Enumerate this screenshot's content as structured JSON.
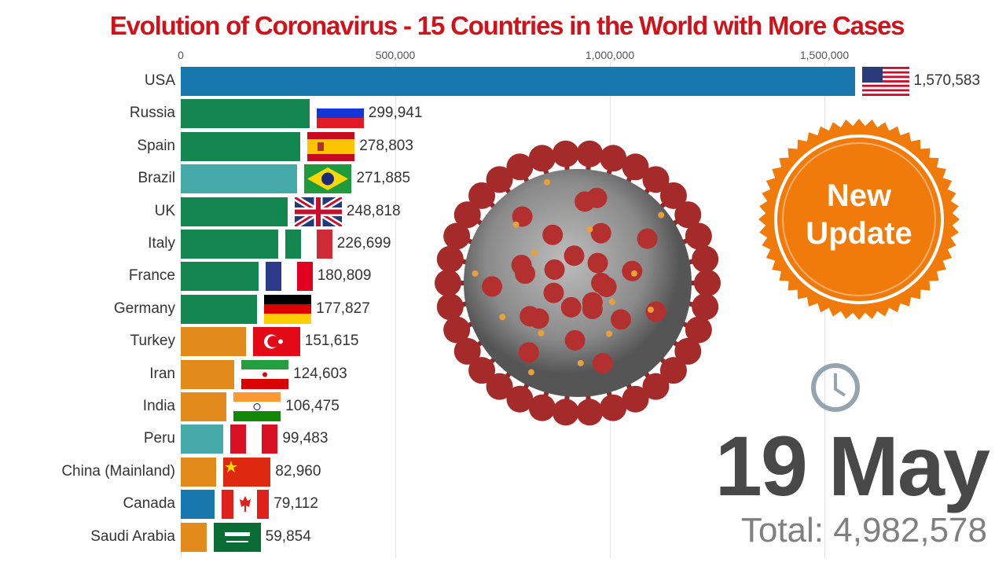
{
  "title": "Evolution of Coronavirus - 15 Countries in the World with More Cases",
  "chart_data": {
    "type": "bar",
    "orientation": "horizontal",
    "title": "Evolution of Coronavirus - 15 Countries in the World with More Cases",
    "xlim": [
      0,
      1600000
    ],
    "xticks": [
      0,
      500000,
      1000000,
      1500000
    ],
    "xtick_labels": [
      "0",
      "500,000",
      "1,000,000",
      "1,500,000"
    ],
    "categories": [
      "USA",
      "Russia",
      "Spain",
      "Brazil",
      "UK",
      "Italy",
      "France",
      "Germany",
      "Turkey",
      "Iran",
      "India",
      "Peru",
      "China (Mainland)",
      "Canada",
      "Saudi Arabia"
    ],
    "values": [
      1570583,
      299941,
      278803,
      271885,
      248818,
      226699,
      180809,
      177827,
      151615,
      124603,
      106475,
      99483,
      82960,
      79112,
      59854
    ],
    "value_labels": [
      "1,570,583",
      "299,941",
      "278,803",
      "271,885",
      "248,818",
      "226,699",
      "180,809",
      "177,827",
      "151,615",
      "124,603",
      "106,475",
      "99,483",
      "82,960",
      "79,112",
      "59,854"
    ],
    "flags": [
      "us",
      "ru",
      "es",
      "br",
      "gb",
      "it",
      "fr",
      "de",
      "tr",
      "ir",
      "in",
      "pe",
      "cn",
      "ca",
      "sa"
    ],
    "colors": [
      "#1878ad",
      "#13874f",
      "#13874f",
      "#45aaa9",
      "#13874f",
      "#13874f",
      "#13874f",
      "#13874f",
      "#e28a1b",
      "#e28a1b",
      "#e28a1b",
      "#45aaa9",
      "#e28a1b",
      "#1878ad",
      "#e28a1b"
    ],
    "grid": true
  },
  "badge": {
    "line1": "New",
    "line2": "Update",
    "color": "#f07a0a"
  },
  "date": "19 May",
  "total": "Total: 4,982,578"
}
